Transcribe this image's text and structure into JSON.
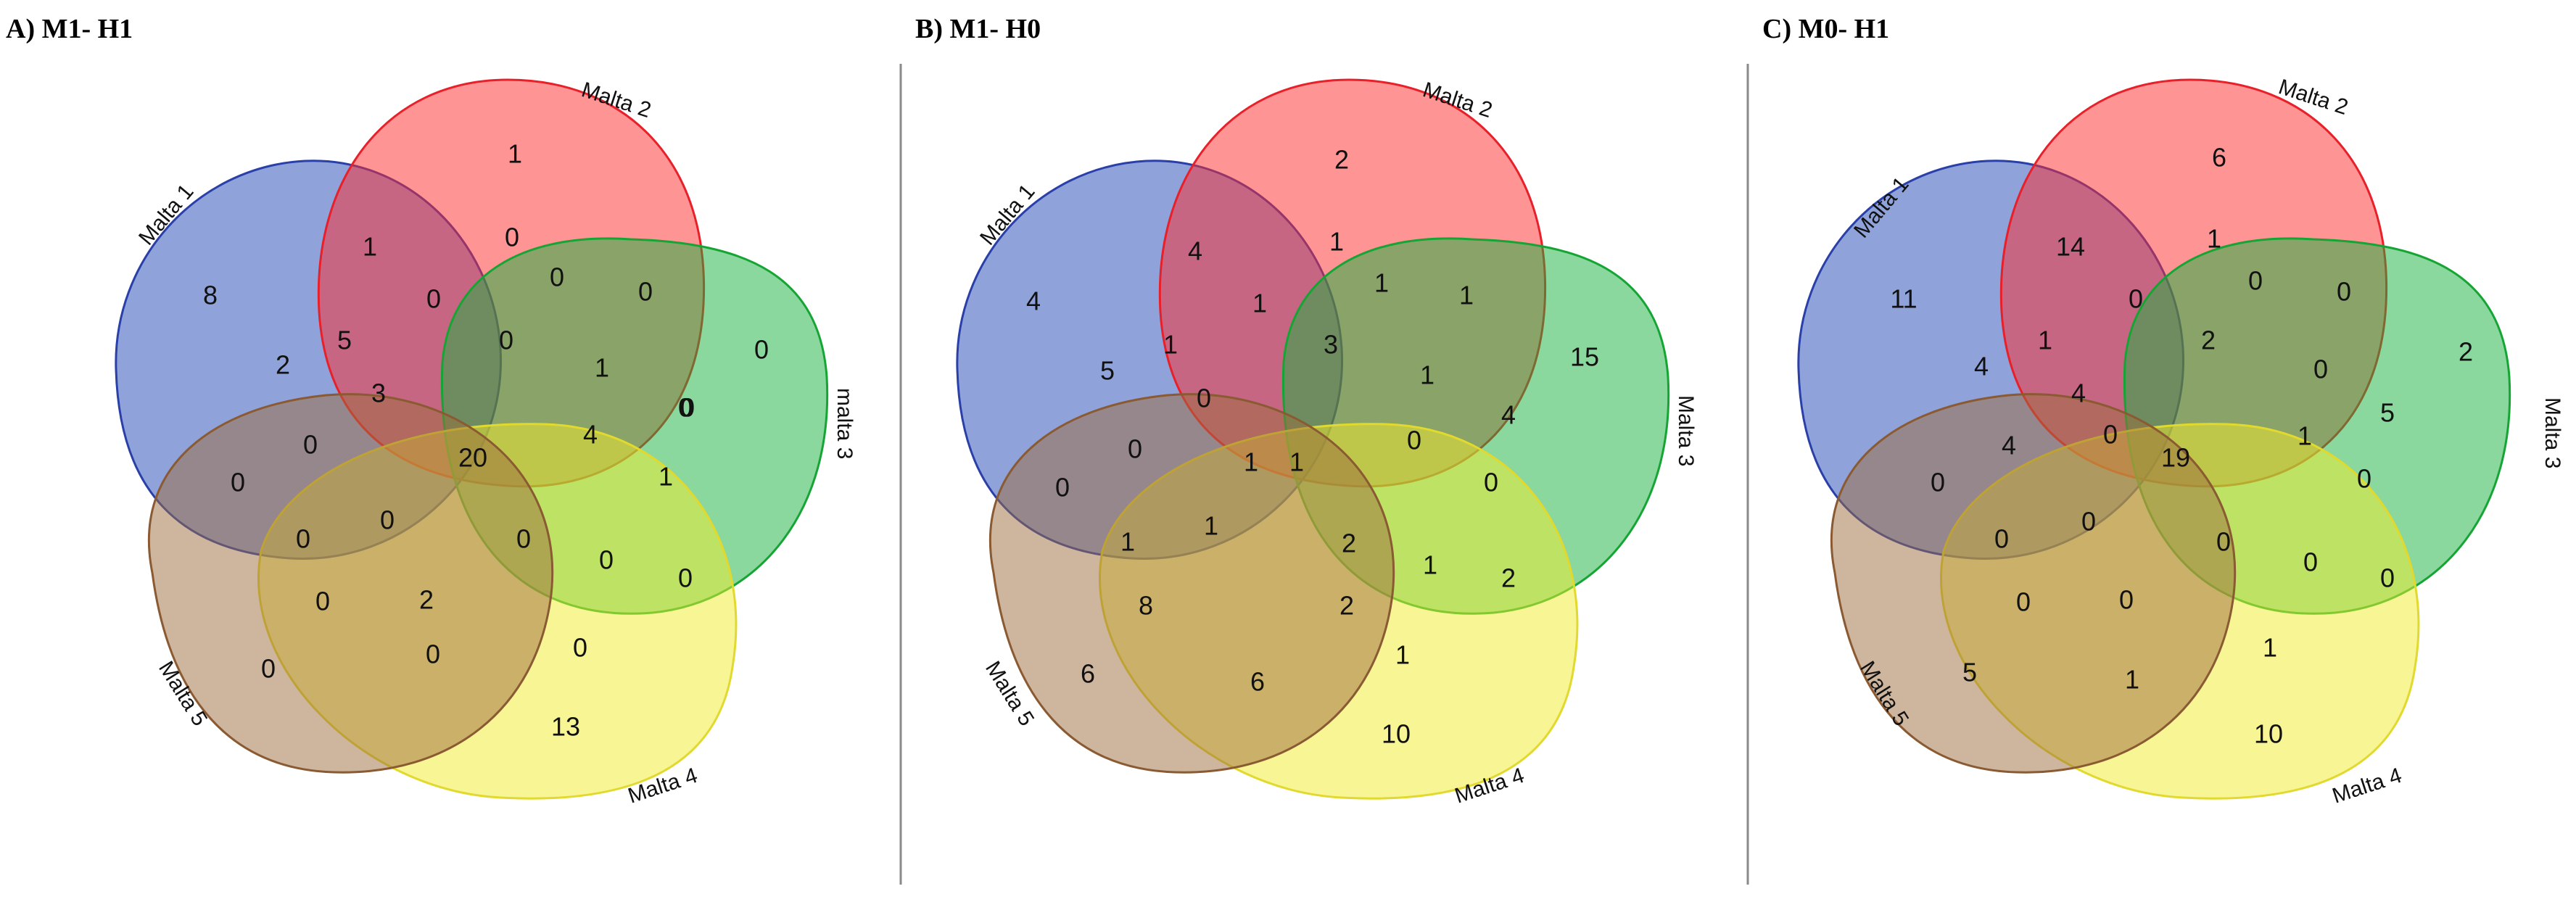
{
  "colors": {
    "malta1": "#1f47b5",
    "malta2": "#ff2a2a",
    "malta3": "#16b23c",
    "malta4": "#f2ec2c",
    "malta5": "#9c6b3e",
    "malta1_stroke": "#2a40a8",
    "malta2_stroke": "#e8202a",
    "malta3_stroke": "#16a535",
    "malta4_stroke": "#e2d92e",
    "malta5_stroke": "#8a5a32"
  },
  "panels": [
    {
      "title": "A) M1- H1",
      "set_labels": [
        "Malta 1",
        "Malta 2",
        "malta 3",
        "Malta 4",
        "Malta 5"
      ],
      "counts": [
        "8",
        "1",
        "0",
        "13",
        "0",
        "1",
        "0",
        "0",
        "0",
        "0",
        "0",
        "0",
        "0",
        "0",
        "2",
        "5",
        "0",
        "1",
        "0",
        "1",
        "0",
        "4",
        "2",
        "0",
        "0",
        "3",
        "0",
        "0",
        "0",
        "0",
        "20"
      ]
    },
    {
      "title": "B) M1- H0",
      "set_labels": [
        "Malta 1",
        "Malta 2",
        "Malta 3",
        "Malta 4",
        "Malta 5"
      ],
      "counts": [
        "4",
        "2",
        "15",
        "10",
        "6",
        "4",
        "1",
        "4",
        "2",
        "0",
        "0",
        "1",
        "1",
        "6",
        "8",
        "5",
        "1",
        "0",
        "1",
        "2",
        "1",
        "0",
        "1",
        "1",
        "1",
        "1",
        "2",
        "1",
        "3",
        "0",
        "1"
      ]
    },
    {
      "title": "C) M0- H1",
      "set_labels": [
        "Malta 1",
        "Malta 2",
        "Malta 3",
        "Malta 4",
        "Malta 5"
      ],
      "counts": [
        "11",
        "6",
        "2",
        "10",
        "5",
        "14",
        "0",
        "5",
        "0",
        "0",
        "0",
        "1",
        "0",
        "1",
        "0",
        "4",
        "1",
        "0",
        "1",
        "0",
        "4",
        "1",
        "0",
        "0",
        "0",
        "4",
        "2",
        "0",
        "0",
        "0",
        "19"
      ]
    }
  ]
}
